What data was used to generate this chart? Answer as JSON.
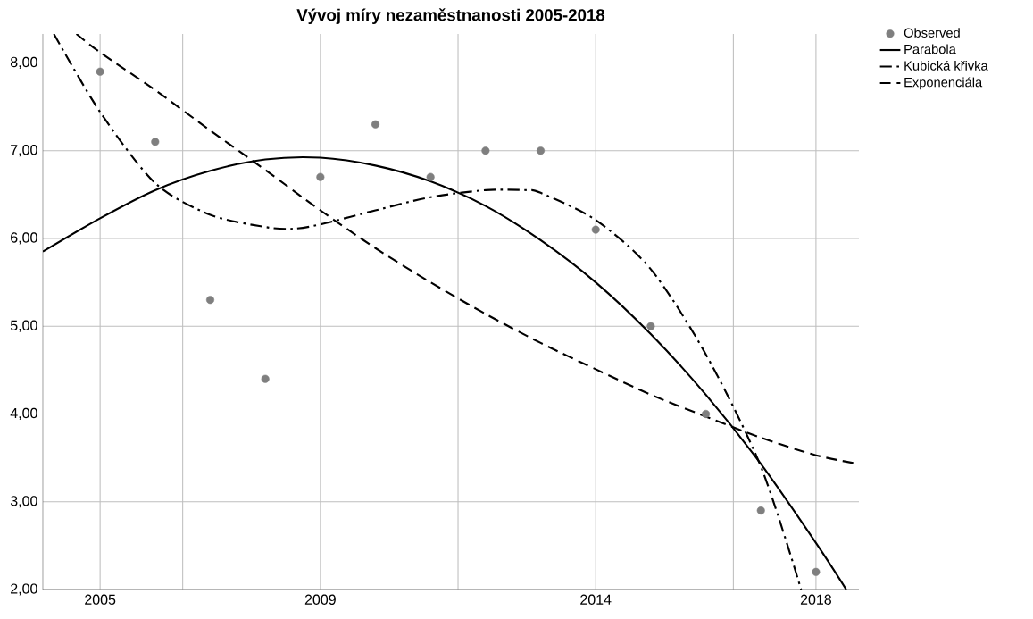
{
  "chart_data": {
    "type": "line",
    "title": "Vývoj míry nezaměstnanosti 2005-2018",
    "xlim": [
      2003.96,
      2018.78
    ],
    "ylim": [
      2,
      8.33
    ],
    "xticks": [
      2005,
      {
        "value": 2006.5,
        "label": null
      },
      2009,
      {
        "value": 2011.5,
        "label": null
      },
      2014,
      {
        "value": 2016.5,
        "label": null
      },
      2018
    ],
    "yticks": [
      {
        "value": 2,
        "label": "2,00"
      },
      {
        "value": 3,
        "label": "3,00"
      },
      {
        "value": 4,
        "label": "4,00"
      },
      {
        "value": 5,
        "label": "5,00"
      },
      {
        "value": 6,
        "label": "6,00"
      },
      {
        "value": 7,
        "label": "7,00"
      },
      {
        "value": 8,
        "label": "8,00"
      }
    ],
    "grid": true,
    "legend": "top right",
    "series": [
      {
        "name": "Observed",
        "type": "scatter",
        "marker": "circle",
        "color": "#7f7f7f",
        "x": [
          2005,
          2006,
          2007,
          2008,
          2009,
          2010,
          2011,
          2012,
          2013,
          2014,
          2015,
          2016,
          2017,
          2018
        ],
        "values": [
          7.9,
          7.1,
          5.3,
          4.4,
          6.7,
          7.3,
          6.7,
          7.0,
          7.0,
          6.1,
          5.0,
          4.0,
          2.9,
          2.2
        ]
      },
      {
        "name": "Parabola",
        "type": "line",
        "marker": "none",
        "line_style": "solid",
        "color": "#000000",
        "x": [
          2003.96,
          2005,
          2006,
          2007,
          2008,
          2009,
          2010,
          2011,
          2012,
          2013,
          2014,
          2015,
          2016,
          2017,
          2018,
          2018.55
        ],
        "values": [
          5.85,
          6.23,
          6.55,
          6.77,
          6.9,
          6.92,
          6.83,
          6.65,
          6.37,
          5.98,
          5.5,
          4.91,
          4.22,
          3.43,
          2.53,
          2.0
        ]
      },
      {
        "name": "Kubická křivka",
        "type": "line",
        "marker": "none",
        "line_style": "dashdot",
        "color": "#000000",
        "x": [
          2004.16,
          2005,
          2006,
          2007,
          2008,
          2008.5,
          2009,
          2010,
          2011,
          2012,
          2012.75,
          2013,
          2014,
          2015,
          2016,
          2017,
          2017.73
        ],
        "values": [
          8.33,
          7.44,
          6.63,
          6.27,
          6.13,
          6.11,
          6.16,
          6.32,
          6.47,
          6.55,
          6.55,
          6.52,
          6.21,
          5.65,
          4.68,
          3.4,
          2.0
        ]
      },
      {
        "name": "Exponenciála",
        "type": "line",
        "marker": "none",
        "line_style": "dashed",
        "color": "#000000",
        "x": [
          2004.57,
          2005,
          2006,
          2007,
          2008,
          2009,
          2010,
          2011,
          2012,
          2013,
          2014,
          2015,
          2016,
          2017,
          2018,
          2018.78
        ],
        "values": [
          8.33,
          8.12,
          7.69,
          7.23,
          6.78,
          6.32,
          5.89,
          5.5,
          5.14,
          4.81,
          4.51,
          4.22,
          3.97,
          3.73,
          3.53,
          3.43
        ]
      }
    ]
  }
}
